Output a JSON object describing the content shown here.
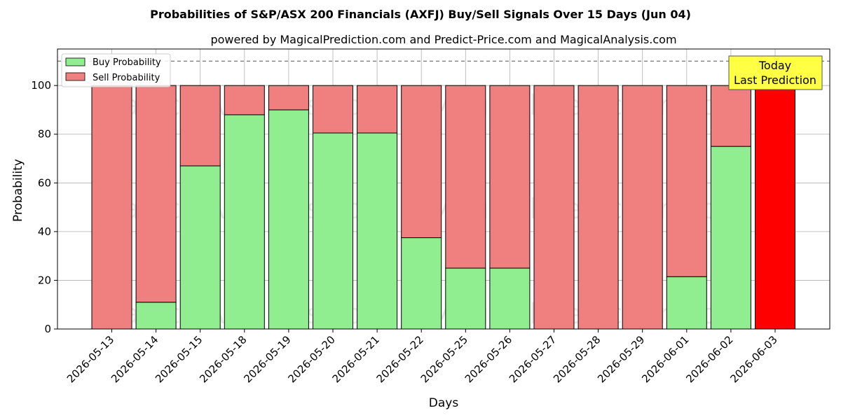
{
  "chart_data": {
    "type": "bar",
    "stacked": true,
    "title": "Probabilities of S&P/ASX 200 Financials (AXFJ) Buy/Sell Signals Over 15 Days (Jun 04)",
    "subtitle": "powered by MagicalPrediction.com and Predict-Price.com and MagicalAnalysis.com",
    "xlabel": "Days",
    "ylabel": "Probability",
    "ylim": [
      0,
      115
    ],
    "yticks": [
      0,
      20,
      40,
      60,
      80,
      100
    ],
    "grid": true,
    "legend_position": "top-left",
    "reference_line": 110,
    "categories": [
      "2026-05-13",
      "2026-05-14",
      "2026-05-15",
      "2026-05-18",
      "2026-05-19",
      "2026-05-20",
      "2026-05-21",
      "2026-05-22",
      "2026-05-25",
      "2026-05-26",
      "2026-05-27",
      "2026-05-28",
      "2026-05-29",
      "2026-06-01",
      "2026-06-02",
      "2026-06-03"
    ],
    "series": [
      {
        "name": "Buy Probability",
        "color": "#90ee90",
        "values": [
          0,
          11,
          67,
          88,
          90,
          80.5,
          80.5,
          37.5,
          25,
          25,
          0,
          0,
          0,
          21.5,
          75,
          0
        ]
      },
      {
        "name": "Sell Probability",
        "color": "#f08080",
        "values": [
          100,
          89,
          33,
          12,
          10,
          19.5,
          19.5,
          62.5,
          75,
          75,
          100,
          100,
          100,
          78.5,
          25,
          100
        ]
      }
    ],
    "highlight": {
      "index": 15,
      "color": "#ff0000"
    },
    "annotation": {
      "lines": [
        "Today",
        "Last Prediction"
      ],
      "background": "#ffff44"
    },
    "watermarks": [
      "MagicalAnalysis.com",
      "MagicalPrediction.com"
    ]
  }
}
